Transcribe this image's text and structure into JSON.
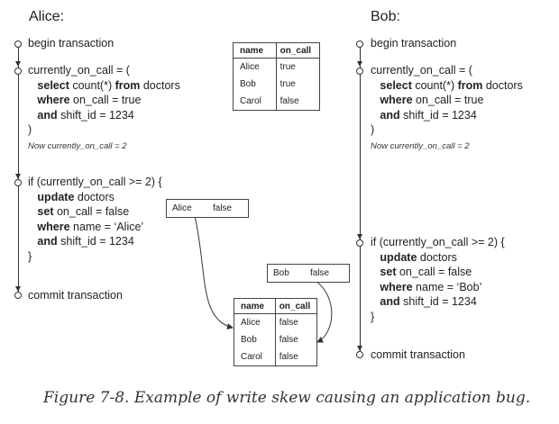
{
  "alice": {
    "title": "Alice:",
    "begin": "begin transaction",
    "query": {
      "line1": "currently_on_call = (",
      "kw_select": "select",
      "txt_select": " count(*) ",
      "kw_from": "from",
      "txt_from": " doctors",
      "kw_where": "where",
      "txt_where": " on_call = true",
      "kw_and": "and",
      "txt_and": " shift_id = 1234",
      "close": ")"
    },
    "note": "Now currently_on_call = 2",
    "if_line": "if (currently_on_call >= 2) {",
    "update": {
      "kw_update": "update",
      "txt_update": " doctors",
      "kw_set": "set",
      "txt_set": " on_call = false",
      "kw_where": "where",
      "txt_where": " name = ‘Alice’",
      "kw_and": "and",
      "txt_and": " shift_id = 1234",
      "close": "}"
    },
    "commit": "commit transaction",
    "write": {
      "name": "Alice",
      "value": "false"
    }
  },
  "bob": {
    "title": "Bob:",
    "begin": "begin transaction",
    "query": {
      "line1": "currently_on_call = (",
      "kw_select": "select",
      "txt_select": " count(*) ",
      "kw_from": "from",
      "txt_from": " doctors",
      "kw_where": "where",
      "txt_where": " on_call = true",
      "kw_and": "and",
      "txt_and": " shift_id = 1234",
      "close": ")"
    },
    "note": "Now currently_on_call = 2",
    "if_line": "if (currently_on_call >= 2) {",
    "update": {
      "kw_update": "update",
      "txt_update": " doctors",
      "kw_set": "set",
      "txt_set": " on_call = false",
      "kw_where": "where",
      "txt_where": " name = ‘Bob’",
      "kw_and": "and",
      "txt_and": " shift_id = 1234",
      "close": "}"
    },
    "commit": "commit transaction",
    "write": {
      "name": "Bob",
      "value": "false"
    }
  },
  "table_before": {
    "headers": [
      "name",
      "on_call"
    ],
    "rows": [
      [
        "Alice",
        "true"
      ],
      [
        "Bob",
        "true"
      ],
      [
        "Carol",
        "false"
      ]
    ]
  },
  "table_after": {
    "headers": [
      "name",
      "on_call"
    ],
    "rows": [
      [
        "Alice",
        "false"
      ],
      [
        "Bob",
        "false"
      ],
      [
        "Carol",
        "false"
      ]
    ]
  },
  "caption": "Figure 7-8. Example of write skew causing an application bug."
}
